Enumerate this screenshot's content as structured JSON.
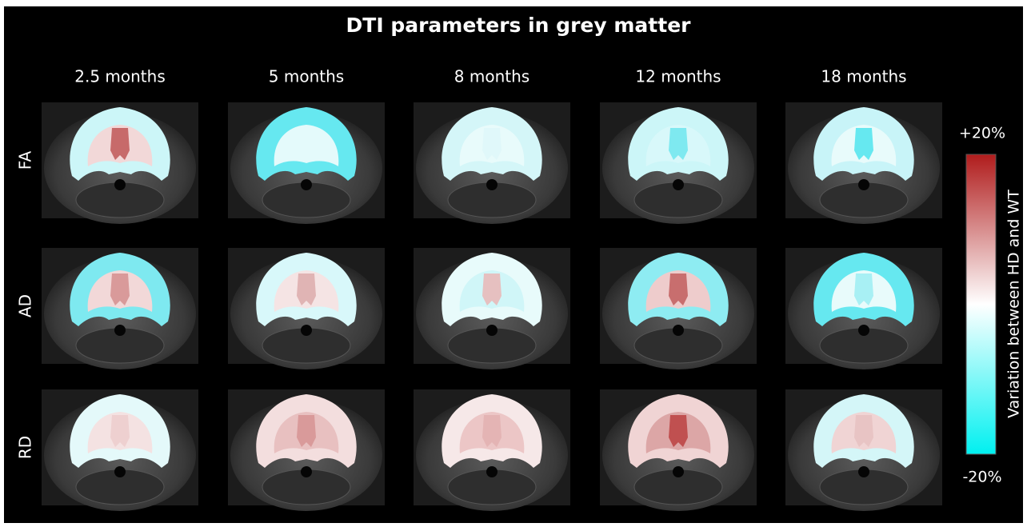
{
  "title": "DTI parameters in grey matter",
  "columns": [
    "2.5 months",
    "5 months",
    "8 months",
    "12 months",
    "18 months"
  ],
  "rows": [
    "FA",
    "AD",
    "RD"
  ],
  "colorbar": {
    "max_label": "+20%",
    "min_label": "-20%",
    "label": "Variation between HD and WT"
  }
}
